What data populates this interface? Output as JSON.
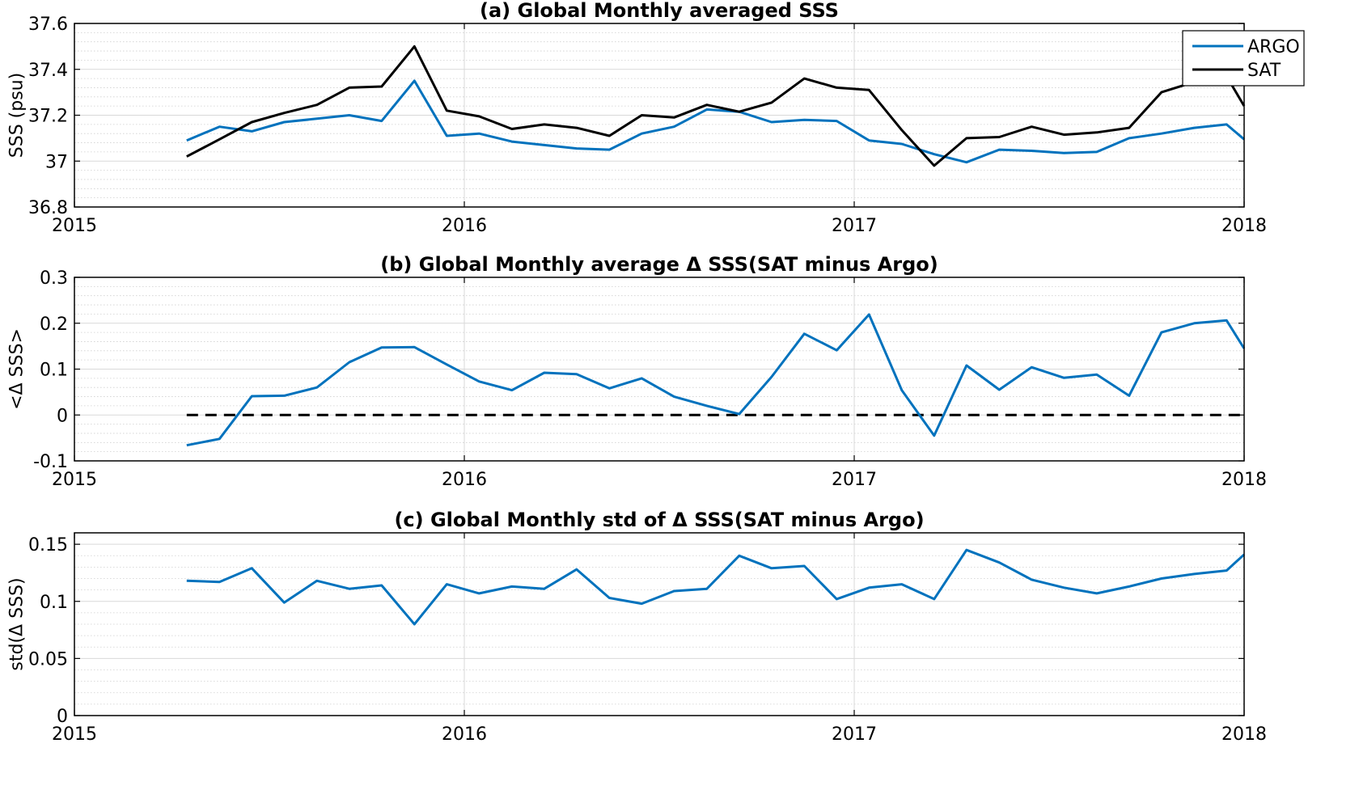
{
  "colors": {
    "argo": "#0072BD",
    "sat": "#000000",
    "grid_major": "#d9d9d9",
    "grid_minor": "#cfcfcf",
    "axis": "#000000"
  },
  "chart_data": [
    {
      "id": "a",
      "type": "line",
      "title": "(a) Global Monthly averaged SSS",
      "xlabel": "",
      "ylabel": "SSS (psu)",
      "xlim": [
        2015,
        2018
      ],
      "ylim": [
        36.8,
        37.6
      ],
      "xticks": [
        2015,
        2016,
        2017,
        2018
      ],
      "xtick_labels": [
        "2015",
        "2016",
        "2017",
        "2018"
      ],
      "yticks": [
        36.8,
        37,
        37.2,
        37.4,
        37.6
      ],
      "ytick_labels": [
        "36.8",
        "37",
        "37.2",
        "37.4",
        "37.6"
      ],
      "y_minor_step": 0.04,
      "grid": true,
      "legend": "top-right",
      "series": [
        {
          "name": "ARGO",
          "color_key": "argo",
          "x": [
            2015.288,
            2015.372,
            2015.455,
            2015.538,
            2015.622,
            2015.705,
            2015.788,
            2015.872,
            2015.955,
            2016.038,
            2016.122,
            2016.205,
            2016.288,
            2016.372,
            2016.455,
            2016.538,
            2016.622,
            2016.705,
            2016.788,
            2016.872,
            2016.955,
            2017.038,
            2017.122,
            2017.205,
            2017.288,
            2017.372,
            2017.455,
            2017.538,
            2017.622,
            2017.705,
            2017.788,
            2017.872,
            2017.955,
            2018.0
          ],
          "y": [
            37.09,
            37.15,
            37.13,
            37.17,
            37.185,
            37.2,
            37.175,
            37.35,
            37.11,
            37.12,
            37.085,
            37.07,
            37.055,
            37.05,
            37.12,
            37.15,
            37.225,
            37.215,
            37.17,
            37.18,
            37.175,
            37.09,
            37.075,
            37.03,
            36.995,
            37.05,
            37.045,
            37.035,
            37.04,
            37.1,
            37.12,
            37.145,
            37.16,
            37.095
          ]
        },
        {
          "name": "SAT",
          "color_key": "sat",
          "x": [
            2015.288,
            2015.372,
            2015.455,
            2015.538,
            2015.622,
            2015.705,
            2015.788,
            2015.872,
            2015.955,
            2016.038,
            2016.122,
            2016.205,
            2016.288,
            2016.372,
            2016.455,
            2016.538,
            2016.622,
            2016.705,
            2016.788,
            2016.872,
            2016.955,
            2017.038,
            2017.122,
            2017.205,
            2017.288,
            2017.372,
            2017.455,
            2017.538,
            2017.622,
            2017.705,
            2017.788,
            2017.872,
            2017.955,
            2018.0
          ],
          "y": [
            37.02,
            37.095,
            37.17,
            37.21,
            37.245,
            37.32,
            37.325,
            37.5,
            37.22,
            37.195,
            37.14,
            37.16,
            37.145,
            37.11,
            37.2,
            37.19,
            37.245,
            37.215,
            37.255,
            37.36,
            37.32,
            37.31,
            37.135,
            36.98,
            37.1,
            37.105,
            37.15,
            37.115,
            37.125,
            37.145,
            37.3,
            37.345,
            37.37,
            37.24
          ]
        }
      ]
    },
    {
      "id": "b",
      "type": "line",
      "title": "(b) Global Monthly average Δ SSS(SAT minus Argo)",
      "xlabel": "",
      "ylabel": "<Δ SSS>",
      "xlim": [
        2015,
        2018
      ],
      "ylim": [
        -0.1,
        0.3
      ],
      "xticks": [
        2015,
        2016,
        2017,
        2018
      ],
      "xtick_labels": [
        "2015",
        "2016",
        "2017",
        "2018"
      ],
      "yticks": [
        -0.1,
        0,
        0.1,
        0.2,
        0.3
      ],
      "ytick_labels": [
        "-0.1",
        "0",
        "0.1",
        "0.2",
        "0.3"
      ],
      "y_minor_step": 0.02,
      "grid": true,
      "reference_line": {
        "y": 0,
        "style": "dashed",
        "color_key": "sat"
      },
      "series": [
        {
          "color_key": "argo",
          "x": [
            2015.288,
            2015.372,
            2015.455,
            2015.538,
            2015.622,
            2015.705,
            2015.788,
            2015.872,
            2015.955,
            2016.038,
            2016.122,
            2016.205,
            2016.288,
            2016.372,
            2016.455,
            2016.538,
            2016.622,
            2016.705,
            2016.788,
            2016.872,
            2016.955,
            2017.038,
            2017.122,
            2017.205,
            2017.288,
            2017.372,
            2017.455,
            2017.538,
            2017.622,
            2017.705,
            2017.788,
            2017.872,
            2017.955,
            2018.0
          ],
          "y": [
            -0.066,
            -0.052,
            0.041,
            0.042,
            0.06,
            0.115,
            0.147,
            0.148,
            0.11,
            0.073,
            0.054,
            0.092,
            0.089,
            0.058,
            0.08,
            0.04,
            0.02,
            0.002,
            0.083,
            0.177,
            0.141,
            0.219,
            0.054,
            -0.045,
            0.108,
            0.055,
            0.104,
            0.081,
            0.088,
            0.042,
            0.18,
            0.2,
            0.206,
            0.145
          ]
        }
      ]
    },
    {
      "id": "c",
      "type": "line",
      "title": "(c) Global Monthly std of Δ SSS(SAT minus Argo)",
      "xlabel": "",
      "ylabel": "std(Δ SSS)",
      "xlim": [
        2015,
        2018
      ],
      "ylim": [
        0,
        0.16
      ],
      "xticks": [
        2015,
        2016,
        2017,
        2018
      ],
      "xtick_labels": [
        "2015",
        "2016",
        "2017",
        "2018"
      ],
      "yticks": [
        0,
        0.05,
        0.1,
        0.15
      ],
      "ytick_labels": [
        "0",
        "0.05",
        "0.1",
        "0.15"
      ],
      "y_minor_step": 0.01,
      "grid": true,
      "series": [
        {
          "color_key": "argo",
          "x": [
            2015.288,
            2015.372,
            2015.455,
            2015.538,
            2015.622,
            2015.705,
            2015.788,
            2015.872,
            2015.955,
            2016.038,
            2016.122,
            2016.205,
            2016.288,
            2016.372,
            2016.455,
            2016.538,
            2016.622,
            2016.705,
            2016.788,
            2016.872,
            2016.955,
            2017.038,
            2017.122,
            2017.205,
            2017.288,
            2017.372,
            2017.455,
            2017.538,
            2017.622,
            2017.705,
            2017.788,
            2017.872,
            2017.955,
            2018.0
          ],
          "y": [
            0.118,
            0.117,
            0.129,
            0.099,
            0.118,
            0.111,
            0.114,
            0.08,
            0.115,
            0.107,
            0.113,
            0.111,
            0.128,
            0.103,
            0.098,
            0.109,
            0.111,
            0.14,
            0.129,
            0.131,
            0.102,
            0.112,
            0.115,
            0.102,
            0.145,
            0.134,
            0.119,
            0.112,
            0.107,
            0.113,
            0.12,
            0.124,
            0.127,
            0.141
          ]
        }
      ]
    }
  ]
}
